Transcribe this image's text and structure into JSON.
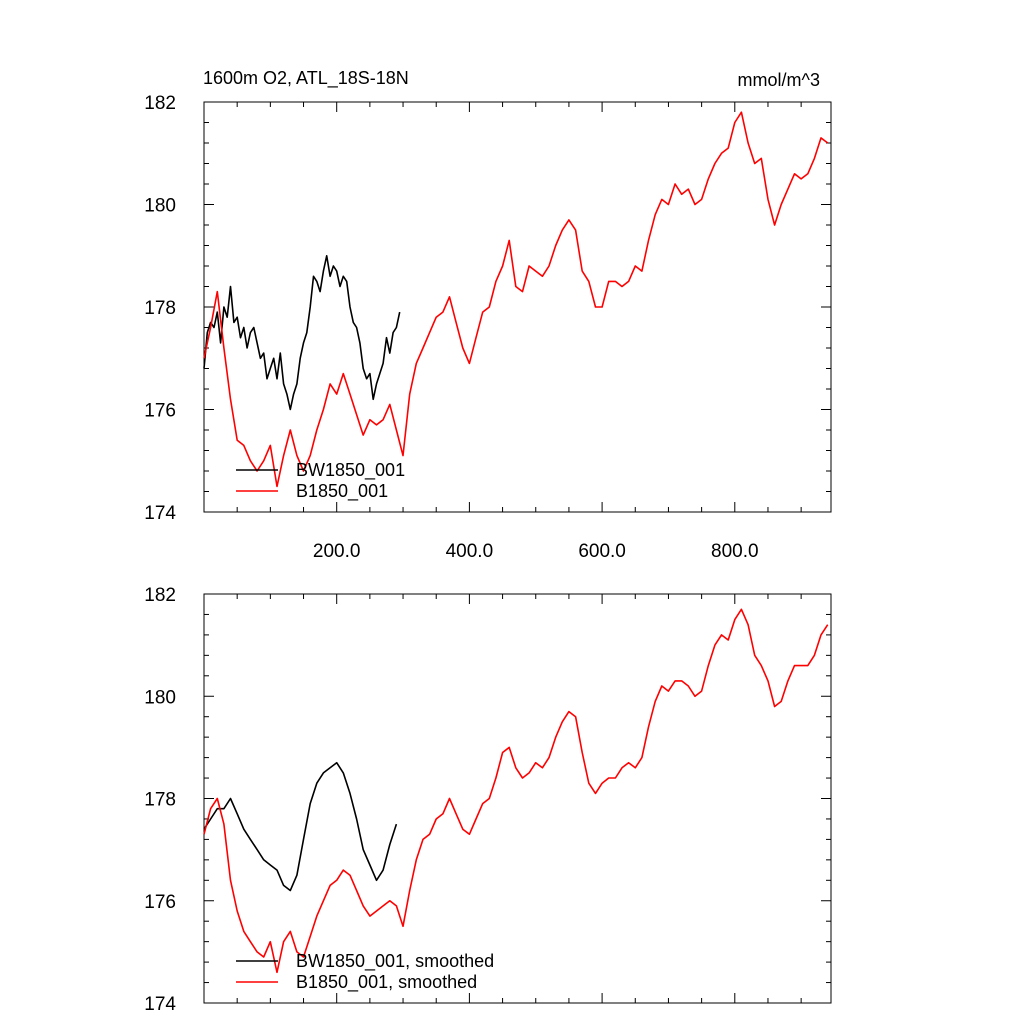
{
  "chart_data": [
    {
      "type": "line",
      "title": "1600m O2, ATL_18S-18N",
      "units": "mmol/m^3",
      "xlim": [
        0,
        945
      ],
      "ylim": [
        174,
        182
      ],
      "xticks": [
        200,
        400,
        600,
        800
      ],
      "xtick_labels": [
        "200.0",
        "400.0",
        "600.0",
        "800.0"
      ],
      "yticks": [
        174,
        176,
        178,
        180,
        182
      ],
      "ytick_labels": [
        "174",
        "176",
        "178",
        "180",
        "182"
      ],
      "legend": "bottom-left",
      "series": [
        {
          "name": "BW1850_001",
          "color": "#000000",
          "x": [
            0,
            5,
            10,
            15,
            20,
            25,
            30,
            35,
            40,
            45,
            50,
            55,
            60,
            65,
            70,
            75,
            80,
            85,
            90,
            95,
            100,
            105,
            110,
            115,
            120,
            125,
            130,
            135,
            140,
            145,
            150,
            155,
            160,
            165,
            170,
            175,
            180,
            185,
            190,
            195,
            200,
            205,
            210,
            215,
            220,
            225,
            230,
            235,
            240,
            245,
            250,
            255,
            260,
            265,
            270,
            275,
            280,
            285,
            290,
            295
          ],
          "y": [
            176.8,
            177.5,
            177.7,
            177.6,
            177.9,
            177.3,
            178.0,
            177.8,
            178.4,
            177.7,
            177.8,
            177.4,
            177.6,
            177.2,
            177.5,
            177.6,
            177.3,
            177.0,
            177.1,
            176.6,
            176.8,
            177.0,
            176.6,
            177.1,
            176.5,
            176.3,
            176.0,
            176.3,
            176.5,
            177.0,
            177.3,
            177.5,
            178.0,
            178.6,
            178.5,
            178.3,
            178.7,
            179.0,
            178.6,
            178.8,
            178.7,
            178.4,
            178.6,
            178.5,
            178.0,
            177.7,
            177.6,
            177.3,
            176.8,
            176.6,
            176.7,
            176.2,
            176.5,
            176.7,
            176.9,
            177.4,
            177.1,
            177.5,
            177.6,
            177.9
          ]
        },
        {
          "name": "B1850_001",
          "color": "#ff0000",
          "x": [
            0,
            10,
            20,
            30,
            40,
            50,
            60,
            70,
            80,
            90,
            100,
            110,
            120,
            130,
            140,
            150,
            160,
            170,
            180,
            190,
            200,
            210,
            220,
            230,
            240,
            250,
            260,
            270,
            280,
            290,
            300,
            310,
            320,
            330,
            340,
            350,
            360,
            370,
            380,
            390,
            400,
            410,
            420,
            430,
            440,
            450,
            460,
            470,
            480,
            490,
            500,
            510,
            520,
            530,
            540,
            550,
            560,
            570,
            580,
            590,
            600,
            610,
            620,
            630,
            640,
            650,
            660,
            670,
            680,
            690,
            700,
            710,
            720,
            730,
            740,
            750,
            760,
            770,
            780,
            790,
            800,
            810,
            820,
            830,
            840,
            850,
            860,
            870,
            880,
            890,
            900,
            910,
            920,
            930,
            940
          ],
          "y": [
            177.0,
            177.6,
            178.3,
            177.2,
            176.2,
            175.4,
            175.3,
            175.0,
            174.8,
            175.0,
            175.3,
            174.5,
            175.1,
            175.6,
            175.1,
            174.8,
            175.1,
            175.6,
            176.0,
            176.5,
            176.3,
            176.7,
            176.3,
            175.9,
            175.5,
            175.8,
            175.7,
            175.8,
            176.1,
            175.6,
            175.1,
            176.3,
            176.9,
            177.2,
            177.5,
            177.8,
            177.9,
            178.2,
            177.7,
            177.2,
            176.9,
            177.4,
            177.9,
            178.0,
            178.5,
            178.8,
            179.3,
            178.4,
            178.3,
            178.8,
            178.7,
            178.6,
            178.8,
            179.2,
            179.5,
            179.7,
            179.5,
            178.7,
            178.5,
            178.0,
            178.0,
            178.5,
            178.5,
            178.4,
            178.5,
            178.8,
            178.7,
            179.3,
            179.8,
            180.1,
            180.0,
            180.4,
            180.2,
            180.3,
            180.0,
            180.1,
            180.5,
            180.8,
            181.0,
            181.1,
            181.6,
            181.8,
            181.2,
            180.8,
            180.9,
            180.1,
            179.6,
            180.0,
            180.3,
            180.6,
            180.5,
            180.6,
            180.9,
            181.3,
            181.2
          ]
        }
      ]
    },
    {
      "type": "line",
      "xlim": [
        0,
        945
      ],
      "ylim": [
        174,
        182
      ],
      "xticks": [
        200,
        400,
        600,
        800
      ],
      "yticks": [
        174,
        176,
        178,
        180,
        182
      ],
      "ytick_labels": [
        "174",
        "176",
        "178",
        "180",
        "182"
      ],
      "legend": "bottom-left",
      "series": [
        {
          "name": "BW1850_001, smoothed",
          "color": "#000000",
          "x": [
            0,
            10,
            20,
            30,
            40,
            50,
            60,
            70,
            80,
            90,
            100,
            110,
            120,
            130,
            140,
            150,
            160,
            170,
            180,
            190,
            200,
            210,
            220,
            230,
            240,
            250,
            260,
            270,
            280,
            290
          ],
          "y": [
            177.4,
            177.6,
            177.8,
            177.8,
            178.0,
            177.7,
            177.4,
            177.2,
            177.0,
            176.8,
            176.7,
            176.6,
            176.3,
            176.2,
            176.5,
            177.2,
            177.9,
            178.3,
            178.5,
            178.6,
            178.7,
            178.5,
            178.1,
            177.6,
            177.0,
            176.7,
            176.4,
            176.6,
            177.1,
            177.5
          ]
        },
        {
          "name": "B1850_001, smoothed",
          "color": "#ff0000",
          "x": [
            0,
            10,
            20,
            30,
            40,
            50,
            60,
            70,
            80,
            90,
            100,
            110,
            120,
            130,
            140,
            150,
            160,
            170,
            180,
            190,
            200,
            210,
            220,
            230,
            240,
            250,
            260,
            270,
            280,
            290,
            300,
            310,
            320,
            330,
            340,
            350,
            360,
            370,
            380,
            390,
            400,
            410,
            420,
            430,
            440,
            450,
            460,
            470,
            480,
            490,
            500,
            510,
            520,
            530,
            540,
            550,
            560,
            570,
            580,
            590,
            600,
            610,
            620,
            630,
            640,
            650,
            660,
            670,
            680,
            690,
            700,
            710,
            720,
            730,
            740,
            750,
            760,
            770,
            780,
            790,
            800,
            810,
            820,
            830,
            840,
            850,
            860,
            870,
            880,
            890,
            900,
            910,
            920,
            930,
            940
          ],
          "y": [
            177.3,
            177.8,
            178.0,
            177.5,
            176.4,
            175.8,
            175.4,
            175.2,
            175.0,
            174.9,
            175.2,
            174.6,
            175.2,
            175.4,
            175.0,
            174.9,
            175.3,
            175.7,
            176.0,
            176.3,
            176.4,
            176.6,
            176.5,
            176.2,
            175.9,
            175.7,
            175.8,
            175.9,
            176.0,
            175.9,
            175.5,
            176.2,
            176.8,
            177.2,
            177.3,
            177.6,
            177.7,
            178.0,
            177.7,
            177.4,
            177.3,
            177.6,
            177.9,
            178.0,
            178.4,
            178.9,
            179.0,
            178.6,
            178.4,
            178.5,
            178.7,
            178.6,
            178.8,
            179.2,
            179.5,
            179.7,
            179.6,
            178.9,
            178.3,
            178.1,
            178.3,
            178.4,
            178.4,
            178.6,
            178.7,
            178.6,
            178.8,
            179.4,
            179.9,
            180.2,
            180.1,
            180.3,
            180.3,
            180.2,
            180.0,
            180.1,
            180.6,
            181.0,
            181.2,
            181.1,
            181.5,
            181.7,
            181.4,
            180.8,
            180.6,
            180.3,
            179.8,
            179.9,
            180.3,
            180.6,
            180.6,
            180.6,
            180.8,
            181.2,
            181.4
          ]
        }
      ]
    }
  ]
}
